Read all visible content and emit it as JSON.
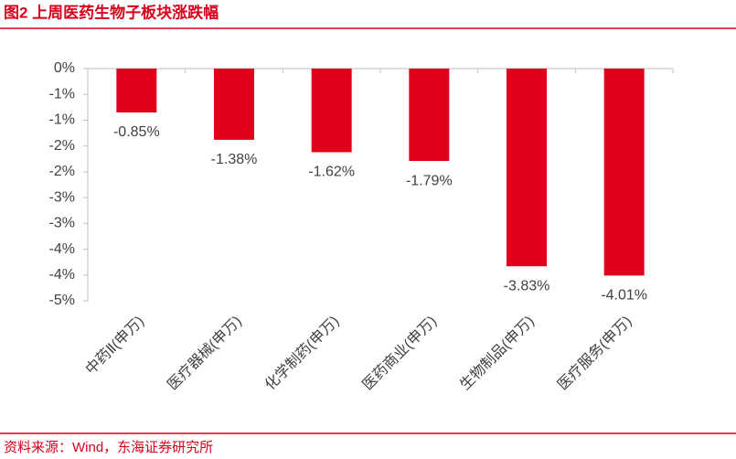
{
  "chart_data": {
    "type": "bar",
    "title": "图2  上周医药生物子板块涨跌幅",
    "source": "资料来源：Wind，东海证券研究所",
    "categories": [
      "中药Ⅱ(申万)",
      "医疗器械(申万)",
      "化学制药(申万)",
      "医药商业(申万)",
      "生物制品(申万)",
      "医疗服务(申万)"
    ],
    "values": [
      -0.85,
      -1.38,
      -1.62,
      -1.79,
      -3.83,
      -4.01
    ],
    "value_labels": [
      "-0.85%",
      "-1.38%",
      "-1.62%",
      "-1.79%",
      "-3.83%",
      "-4.01%"
    ],
    "color": "#e0001b",
    "ylim": [
      -4.5,
      0
    ],
    "yticks": [
      {
        "value": 0,
        "label": "0%"
      },
      {
        "value": -0.5,
        "label": "-1%"
      },
      {
        "value": -1,
        "label": "-1%"
      },
      {
        "value": -1.5,
        "label": "-2%"
      },
      {
        "value": -2,
        "label": "-2%"
      },
      {
        "value": -2.5,
        "label": "-3%"
      },
      {
        "value": -3,
        "label": "-3%"
      },
      {
        "value": -3.5,
        "label": "-4%"
      },
      {
        "value": -4,
        "label": "-4%"
      },
      {
        "value": -4.5,
        "label": "-5%"
      }
    ],
    "grid": false
  }
}
